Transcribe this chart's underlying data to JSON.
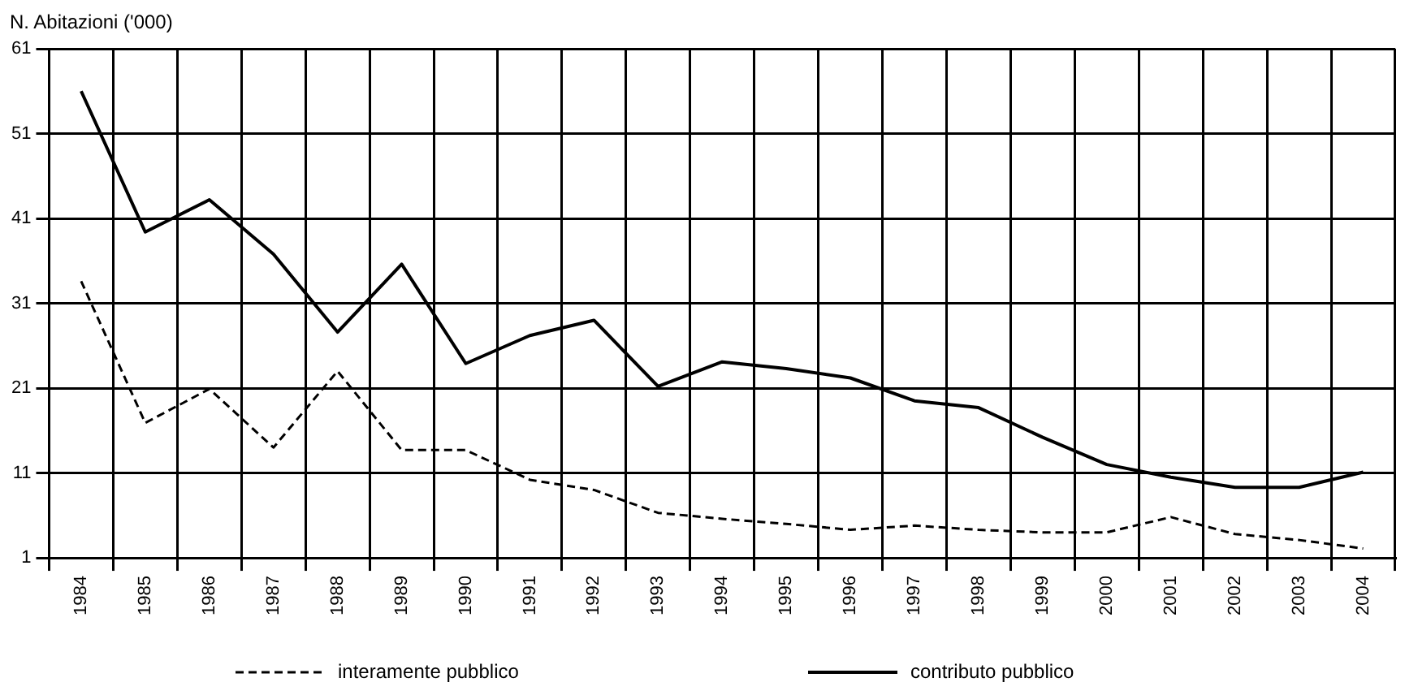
{
  "chart_data": {
    "type": "line",
    "ylabel": "N. Abitazioni ('000)",
    "categories": [
      "1984",
      "1985",
      "1986",
      "1987",
      "1988",
      "1989",
      "1990",
      "1991",
      "1992",
      "1993",
      "1994",
      "1995",
      "1996",
      "1997",
      "1998",
      "1999",
      "2000",
      "2001",
      "2002",
      "2003",
      "2004"
    ],
    "series": [
      {
        "name": "interamente pubblico",
        "color": "#000000",
        "line_style": "dashed",
        "values": [
          33.6,
          16.9,
          20.9,
          14.0,
          23.0,
          13.7,
          13.7,
          10.2,
          9.0,
          6.3,
          5.6,
          5.0,
          4.3,
          4.8,
          4.3,
          4.0,
          4.0,
          5.8,
          3.8,
          3.1,
          2.1
        ]
      },
      {
        "name": "contributo pubblico",
        "color": "#000000",
        "line_style": "solid",
        "values": [
          56.0,
          39.4,
          43.2,
          36.8,
          27.6,
          35.6,
          23.9,
          27.2,
          29.0,
          21.2,
          24.1,
          23.3,
          22.2,
          19.5,
          18.7,
          15.2,
          12.0,
          10.5,
          9.3,
          9.3,
          11.1
        ]
      }
    ],
    "ylim": [
      1,
      61
    ],
    "yticks": [
      1,
      11,
      21,
      31,
      41,
      51,
      61
    ],
    "grid": true,
    "legend": "bottom",
    "marker": "none"
  }
}
